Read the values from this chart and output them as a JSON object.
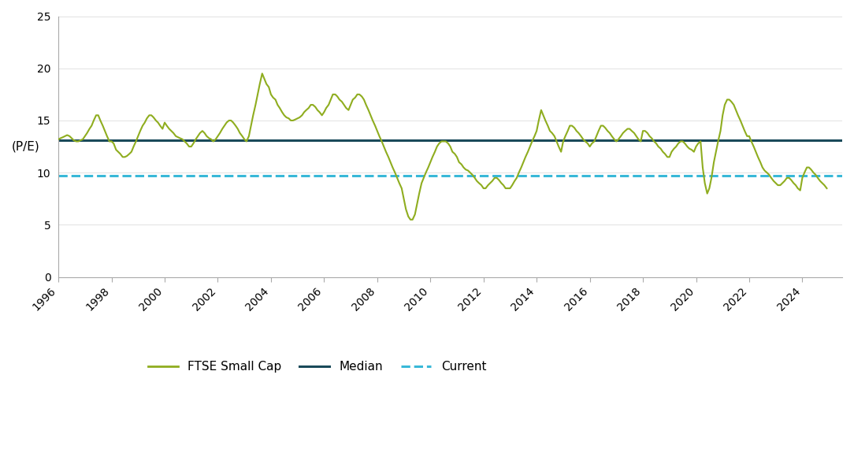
{
  "ylabel": "(P/E)",
  "median_value": 13.1,
  "current_value": 9.7,
  "ylim": [
    0,
    25
  ],
  "yticks": [
    0,
    5,
    10,
    15,
    20,
    25
  ],
  "xlim_start": 1996.0,
  "xlim_end": 2025.5,
  "xtick_years": [
    1996,
    1998,
    2000,
    2002,
    2004,
    2006,
    2008,
    2010,
    2012,
    2014,
    2016,
    2018,
    2020,
    2022,
    2024
  ],
  "ftse_color": "#8fad1f",
  "median_color": "#1a4a5a",
  "current_color": "#39b8d8",
  "legend_labels": [
    "FTSE Small Cap",
    "Median",
    "Current"
  ],
  "background_color": "#ffffff",
  "ftse_linewidth": 1.5,
  "median_linewidth": 2.2,
  "current_linewidth": 2.2,
  "dates": [
    1996.0,
    1996.08,
    1996.17,
    1996.25,
    1996.33,
    1996.42,
    1996.5,
    1996.58,
    1996.67,
    1996.75,
    1996.83,
    1996.92,
    1997.0,
    1997.08,
    1997.17,
    1997.25,
    1997.33,
    1997.42,
    1997.5,
    1997.58,
    1997.67,
    1997.75,
    1997.83,
    1997.92,
    1998.0,
    1998.08,
    1998.17,
    1998.25,
    1998.33,
    1998.42,
    1998.5,
    1998.58,
    1998.67,
    1998.75,
    1998.83,
    1998.92,
    1999.0,
    1999.08,
    1999.17,
    1999.25,
    1999.33,
    1999.42,
    1999.5,
    1999.58,
    1999.67,
    1999.75,
    1999.83,
    1999.92,
    2000.0,
    2000.08,
    2000.17,
    2000.25,
    2000.33,
    2000.42,
    2000.5,
    2000.58,
    2000.67,
    2000.75,
    2000.83,
    2000.92,
    2001.0,
    2001.08,
    2001.17,
    2001.25,
    2001.33,
    2001.42,
    2001.5,
    2001.58,
    2001.67,
    2001.75,
    2001.83,
    2001.92,
    2002.0,
    2002.08,
    2002.17,
    2002.25,
    2002.33,
    2002.42,
    2002.5,
    2002.58,
    2002.67,
    2002.75,
    2002.83,
    2002.92,
    2003.0,
    2003.08,
    2003.17,
    2003.25,
    2003.33,
    2003.42,
    2003.5,
    2003.58,
    2003.67,
    2003.75,
    2003.83,
    2003.92,
    2004.0,
    2004.08,
    2004.17,
    2004.25,
    2004.33,
    2004.42,
    2004.5,
    2004.58,
    2004.67,
    2004.75,
    2004.83,
    2004.92,
    2005.0,
    2005.08,
    2005.17,
    2005.25,
    2005.33,
    2005.42,
    2005.5,
    2005.58,
    2005.67,
    2005.75,
    2005.83,
    2005.92,
    2006.0,
    2006.08,
    2006.17,
    2006.25,
    2006.33,
    2006.42,
    2006.5,
    2006.58,
    2006.67,
    2006.75,
    2006.83,
    2006.92,
    2007.0,
    2007.08,
    2007.17,
    2007.25,
    2007.33,
    2007.42,
    2007.5,
    2007.58,
    2007.67,
    2007.75,
    2007.83,
    2007.92,
    2008.0,
    2008.08,
    2008.17,
    2008.25,
    2008.33,
    2008.42,
    2008.5,
    2008.58,
    2008.67,
    2008.75,
    2008.83,
    2008.92,
    2009.0,
    2009.08,
    2009.17,
    2009.25,
    2009.33,
    2009.42,
    2009.5,
    2009.58,
    2009.67,
    2009.75,
    2009.83,
    2009.92,
    2010.0,
    2010.08,
    2010.17,
    2010.25,
    2010.33,
    2010.42,
    2010.5,
    2010.58,
    2010.67,
    2010.75,
    2010.83,
    2010.92,
    2011.0,
    2011.08,
    2011.17,
    2011.25,
    2011.33,
    2011.42,
    2011.5,
    2011.58,
    2011.67,
    2011.75,
    2011.83,
    2011.92,
    2012.0,
    2012.08,
    2012.17,
    2012.25,
    2012.33,
    2012.42,
    2012.5,
    2012.58,
    2012.67,
    2012.75,
    2012.83,
    2012.92,
    2013.0,
    2013.08,
    2013.17,
    2013.25,
    2013.33,
    2013.42,
    2013.5,
    2013.58,
    2013.67,
    2013.75,
    2013.83,
    2013.92,
    2014.0,
    2014.08,
    2014.17,
    2014.25,
    2014.33,
    2014.42,
    2014.5,
    2014.58,
    2014.67,
    2014.75,
    2014.83,
    2014.92,
    2015.0,
    2015.08,
    2015.17,
    2015.25,
    2015.33,
    2015.42,
    2015.5,
    2015.58,
    2015.67,
    2015.75,
    2015.83,
    2015.92,
    2016.0,
    2016.08,
    2016.17,
    2016.25,
    2016.33,
    2016.42,
    2016.5,
    2016.58,
    2016.67,
    2016.75,
    2016.83,
    2016.92,
    2017.0,
    2017.08,
    2017.17,
    2017.25,
    2017.33,
    2017.42,
    2017.5,
    2017.58,
    2017.67,
    2017.75,
    2017.83,
    2017.92,
    2018.0,
    2018.08,
    2018.17,
    2018.25,
    2018.33,
    2018.42,
    2018.5,
    2018.58,
    2018.67,
    2018.75,
    2018.83,
    2018.92,
    2019.0,
    2019.08,
    2019.17,
    2019.25,
    2019.33,
    2019.42,
    2019.5,
    2019.58,
    2019.67,
    2019.75,
    2019.83,
    2019.92,
    2020.0,
    2020.08,
    2020.17,
    2020.25,
    2020.33,
    2020.42,
    2020.5,
    2020.58,
    2020.67,
    2020.75,
    2020.83,
    2020.92,
    2021.0,
    2021.08,
    2021.17,
    2021.25,
    2021.33,
    2021.42,
    2021.5,
    2021.58,
    2021.67,
    2021.75,
    2021.83,
    2021.92,
    2022.0,
    2022.08,
    2022.17,
    2022.25,
    2022.33,
    2022.42,
    2022.5,
    2022.58,
    2022.67,
    2022.75,
    2022.83,
    2022.92,
    2023.0,
    2023.08,
    2023.17,
    2023.25,
    2023.33,
    2023.42,
    2023.5,
    2023.58,
    2023.67,
    2023.75,
    2023.83,
    2023.92,
    2024.0,
    2024.08,
    2024.17,
    2024.25,
    2024.33,
    2024.42,
    2024.5,
    2024.58,
    2024.67,
    2024.75,
    2024.83,
    2024.92
  ],
  "values": [
    13.2,
    13.3,
    13.4,
    13.5,
    13.6,
    13.5,
    13.3,
    13.1,
    13.0,
    13.0,
    13.1,
    13.2,
    13.5,
    13.8,
    14.2,
    14.5,
    15.0,
    15.5,
    15.5,
    15.0,
    14.5,
    14.0,
    13.5,
    13.0,
    13.0,
    12.8,
    12.2,
    12.0,
    11.8,
    11.5,
    11.5,
    11.6,
    11.8,
    12.0,
    12.5,
    13.0,
    13.5,
    14.0,
    14.5,
    14.8,
    15.2,
    15.5,
    15.5,
    15.3,
    15.0,
    14.8,
    14.5,
    14.2,
    14.8,
    14.5,
    14.2,
    14.0,
    13.8,
    13.5,
    13.4,
    13.3,
    13.2,
    13.0,
    12.8,
    12.5,
    12.5,
    12.8,
    13.2,
    13.5,
    13.8,
    14.0,
    13.8,
    13.5,
    13.3,
    13.2,
    13.0,
    13.2,
    13.5,
    13.8,
    14.2,
    14.5,
    14.8,
    15.0,
    15.0,
    14.8,
    14.5,
    14.2,
    13.8,
    13.5,
    13.2,
    13.0,
    13.5,
    14.5,
    15.5,
    16.5,
    17.5,
    18.5,
    19.5,
    19.0,
    18.5,
    18.2,
    17.5,
    17.2,
    17.0,
    16.5,
    16.2,
    15.8,
    15.5,
    15.3,
    15.2,
    15.0,
    15.0,
    15.1,
    15.2,
    15.3,
    15.5,
    15.8,
    16.0,
    16.2,
    16.5,
    16.5,
    16.3,
    16.0,
    15.8,
    15.5,
    15.8,
    16.2,
    16.5,
    17.0,
    17.5,
    17.5,
    17.3,
    17.0,
    16.8,
    16.5,
    16.2,
    16.0,
    16.5,
    17.0,
    17.2,
    17.5,
    17.5,
    17.3,
    17.0,
    16.5,
    16.0,
    15.5,
    15.0,
    14.5,
    14.0,
    13.5,
    13.0,
    12.5,
    12.0,
    11.5,
    11.0,
    10.5,
    10.0,
    9.5,
    9.0,
    8.5,
    7.5,
    6.5,
    5.8,
    5.5,
    5.5,
    6.0,
    7.0,
    8.0,
    9.0,
    9.5,
    10.0,
    10.5,
    11.0,
    11.5,
    12.0,
    12.5,
    12.8,
    13.0,
    13.0,
    13.0,
    12.8,
    12.5,
    12.0,
    11.8,
    11.5,
    11.0,
    10.8,
    10.5,
    10.3,
    10.2,
    10.0,
    9.8,
    9.5,
    9.2,
    9.0,
    8.8,
    8.5,
    8.5,
    8.8,
    9.0,
    9.2,
    9.5,
    9.5,
    9.3,
    9.0,
    8.8,
    8.5,
    8.5,
    8.5,
    8.8,
    9.2,
    9.5,
    10.0,
    10.5,
    11.0,
    11.5,
    12.0,
    12.5,
    13.0,
    13.5,
    14.0,
    15.0,
    16.0,
    15.5,
    15.0,
    14.5,
    14.0,
    13.8,
    13.5,
    13.0,
    12.5,
    12.0,
    13.0,
    13.5,
    14.0,
    14.5,
    14.5,
    14.3,
    14.0,
    13.8,
    13.5,
    13.2,
    13.0,
    12.8,
    12.5,
    12.8,
    13.0,
    13.5,
    14.0,
    14.5,
    14.5,
    14.3,
    14.0,
    13.8,
    13.5,
    13.2,
    13.0,
    13.2,
    13.5,
    13.8,
    14.0,
    14.2,
    14.2,
    14.0,
    13.8,
    13.5,
    13.2,
    13.0,
    14.0,
    14.0,
    13.8,
    13.5,
    13.3,
    13.0,
    12.8,
    12.5,
    12.3,
    12.0,
    11.8,
    11.5,
    11.5,
    12.0,
    12.3,
    12.5,
    12.8,
    13.0,
    13.0,
    12.8,
    12.5,
    12.3,
    12.2,
    12.0,
    12.5,
    12.8,
    13.0,
    10.5,
    9.0,
    8.0,
    8.5,
    9.5,
    11.0,
    12.0,
    13.0,
    14.0,
    15.5,
    16.5,
    17.0,
    17.0,
    16.8,
    16.5,
    16.0,
    15.5,
    15.0,
    14.5,
    14.0,
    13.5,
    13.5,
    13.0,
    12.5,
    12.0,
    11.5,
    11.0,
    10.5,
    10.2,
    10.0,
    9.8,
    9.5,
    9.2,
    9.0,
    8.8,
    8.8,
    9.0,
    9.2,
    9.5,
    9.5,
    9.3,
    9.0,
    8.8,
    8.5,
    8.3,
    9.5,
    10.0,
    10.5,
    10.5,
    10.3,
    10.0,
    9.8,
    9.5,
    9.2,
    9.0,
    8.8,
    8.5
  ]
}
